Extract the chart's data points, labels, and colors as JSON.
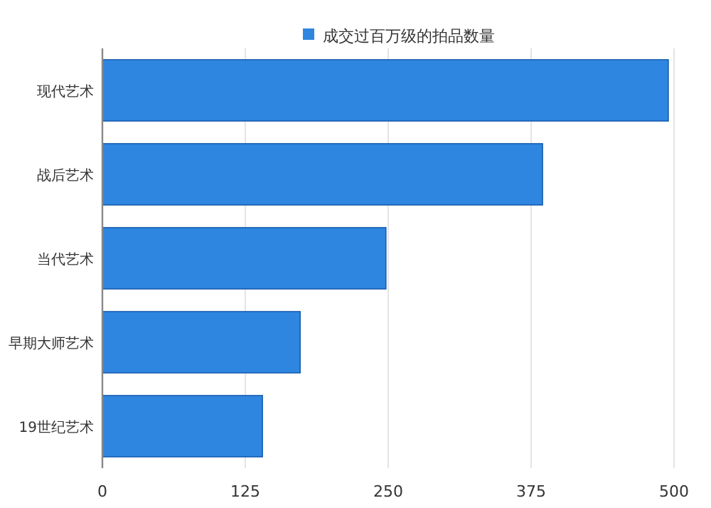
{
  "chart_data": {
    "type": "bar",
    "orientation": "horizontal",
    "categories": [
      "现代艺术",
      "战后艺术",
      "当代艺术",
      "早期大师艺术",
      "19世纪艺术"
    ],
    "series": [
      {
        "name": "成交过百万级的拍品数量",
        "color": "#2f86e0",
        "values": [
          495,
          385,
          248,
          173,
          140
        ]
      }
    ],
    "xlim": [
      0,
      500
    ],
    "xticks": [
      0,
      125,
      250,
      375,
      500
    ],
    "grid": "x",
    "legend": "top"
  }
}
